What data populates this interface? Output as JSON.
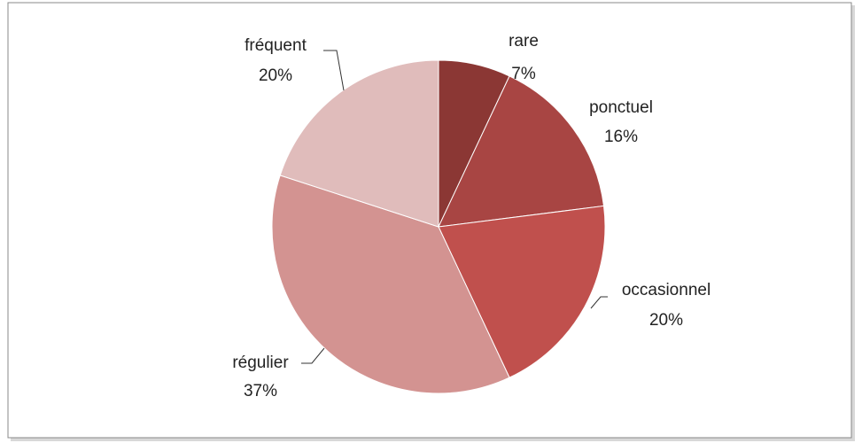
{
  "chart_data": {
    "type": "pie",
    "categories": [
      "rare",
      "ponctuel",
      "occasionnel",
      "régulier",
      "fréquent"
    ],
    "values": [
      7,
      16,
      20,
      37,
      20
    ],
    "value_labels": [
      "7%",
      "16%",
      "20%",
      "37%",
      "20%"
    ],
    "colors": [
      "#8b3734",
      "#a84543",
      "#c0504d",
      "#d39391",
      "#e0bcbb"
    ]
  }
}
